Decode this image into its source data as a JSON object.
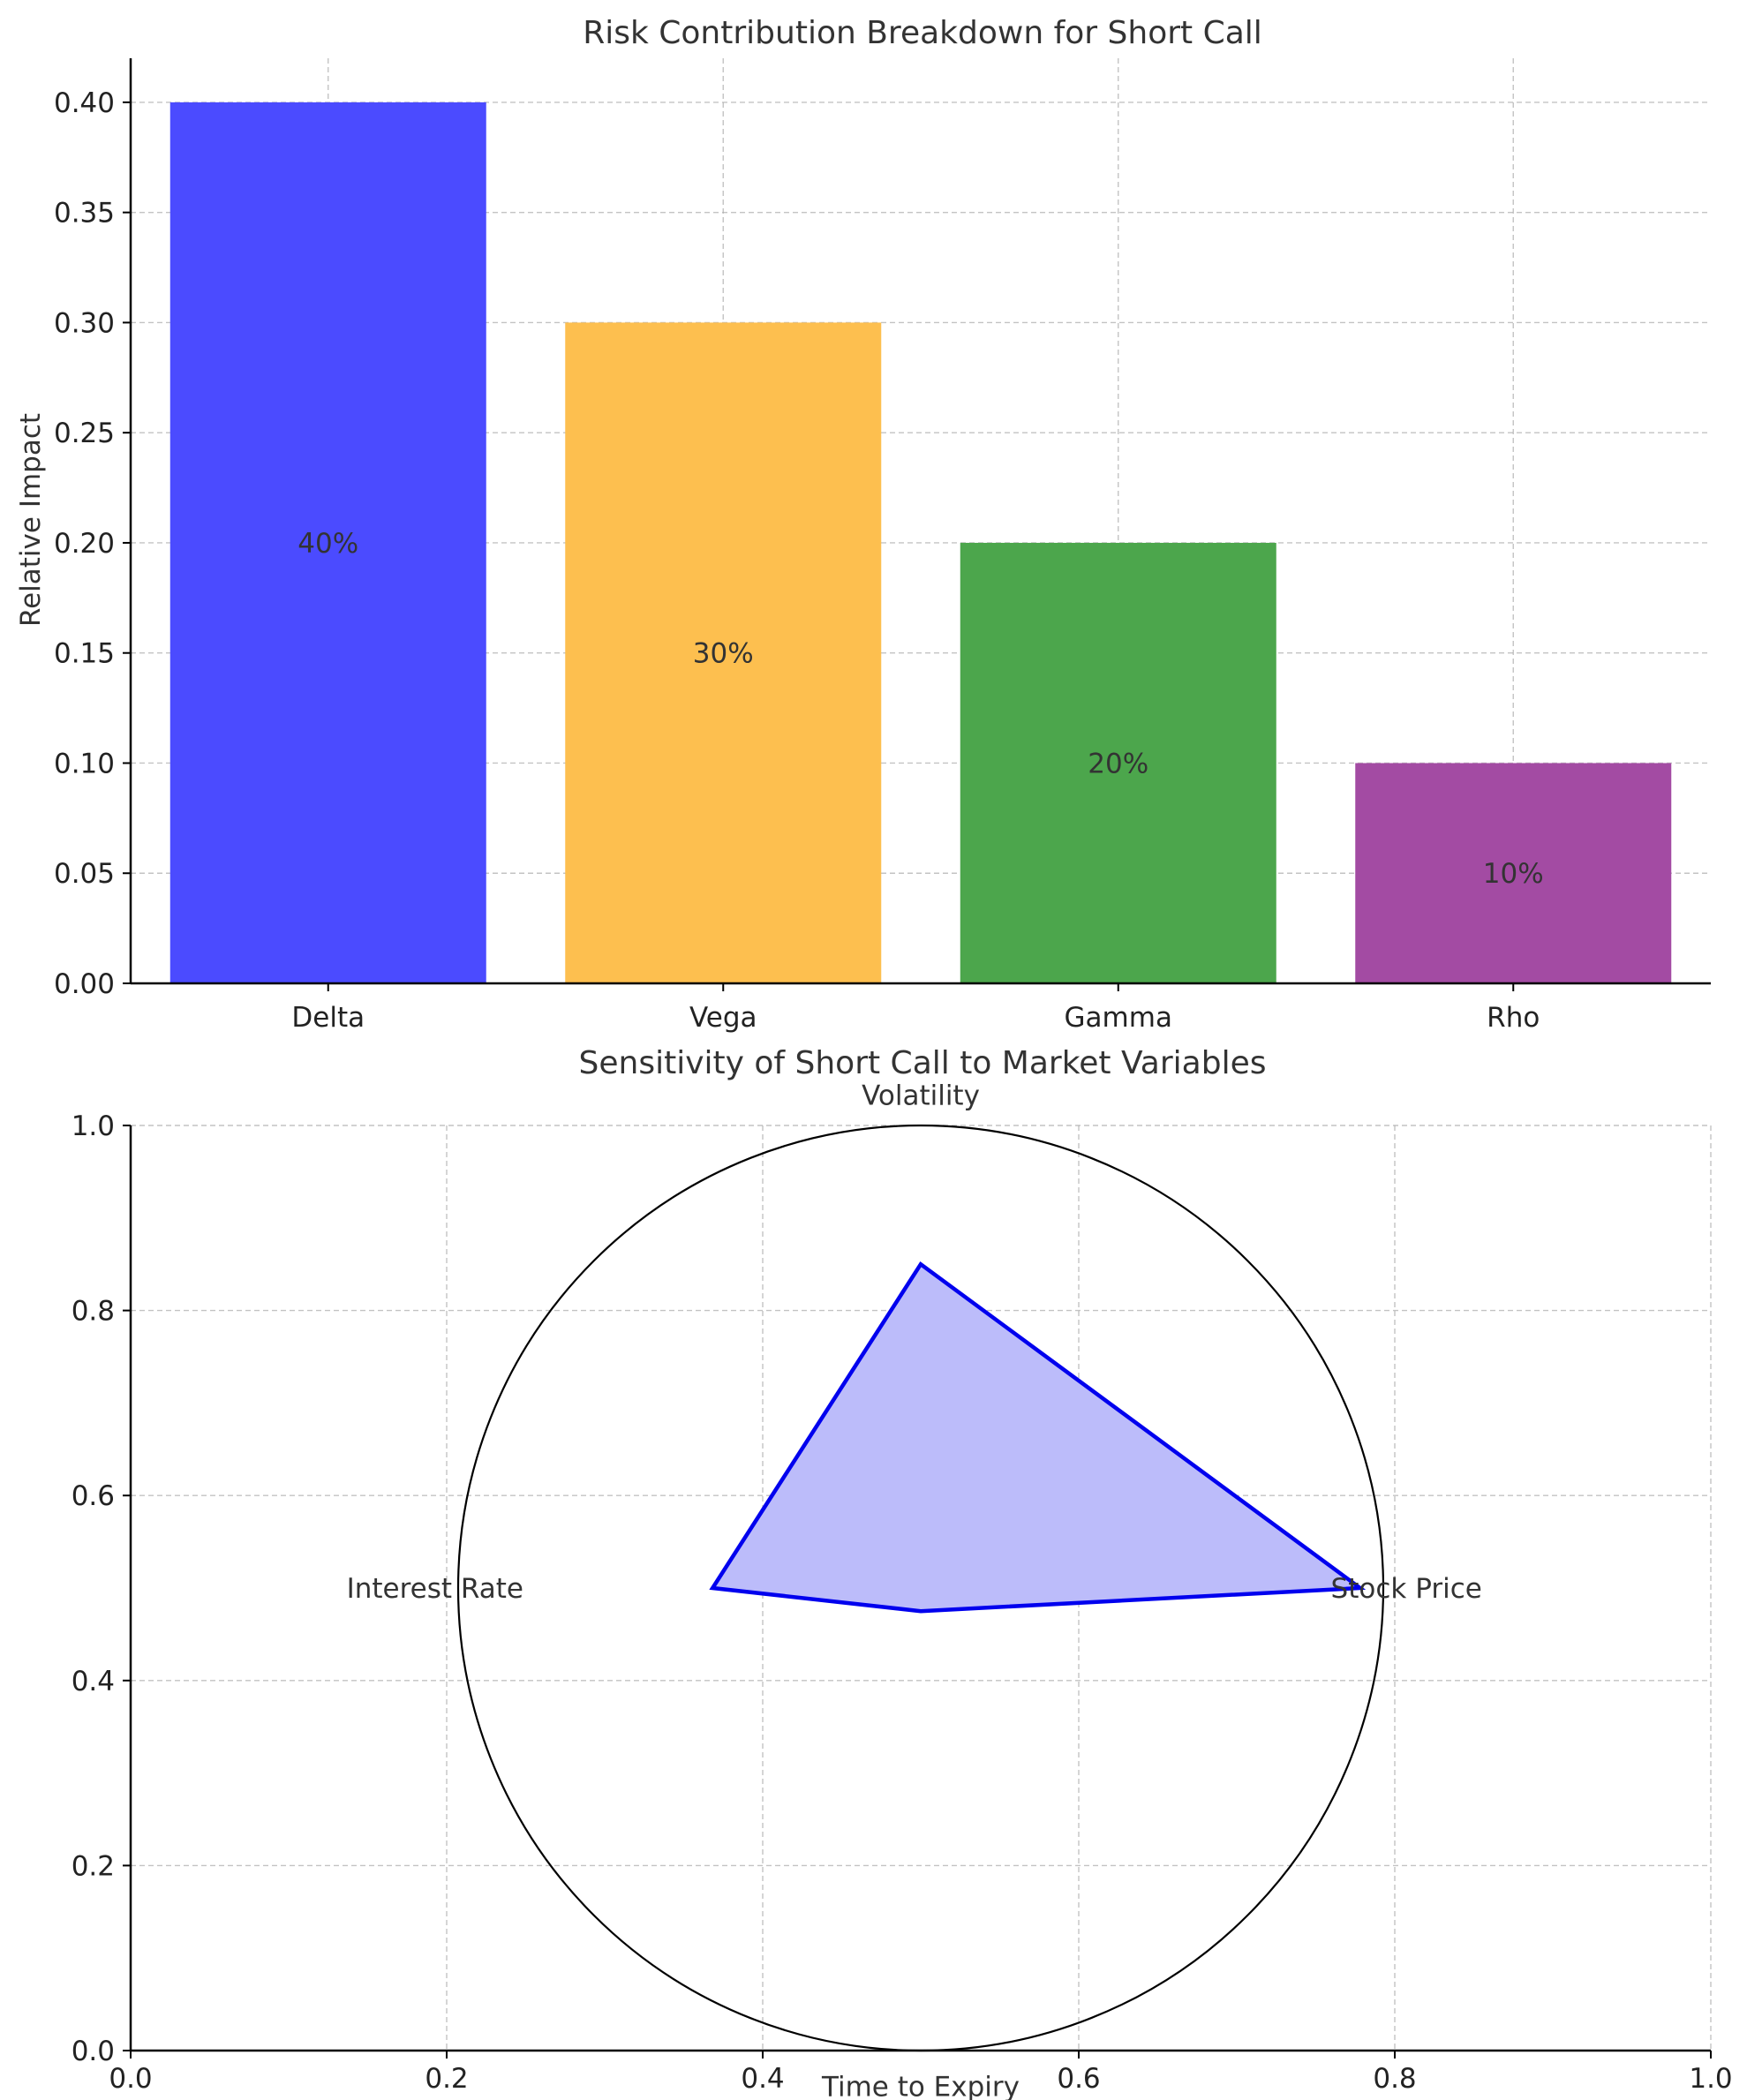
{
  "chart_data": [
    {
      "type": "bar",
      "title": "Risk Contribution Breakdown for Short Call",
      "xlabel": "",
      "ylabel": "Relative Impact",
      "categories": [
        "Delta",
        "Vega",
        "Gamma",
        "Rho"
      ],
      "values": [
        0.4,
        0.3,
        0.2,
        0.1
      ],
      "data_labels": [
        "40%",
        "30%",
        "20%",
        "10%"
      ],
      "colors": [
        "#4b4bff",
        "#fdbf4f",
        "#4ca64c",
        "#a34ba3"
      ],
      "ylim": [
        0,
        0.42
      ],
      "yticks": [
        "0.00",
        "0.05",
        "0.10",
        "0.15",
        "0.20",
        "0.25",
        "0.30",
        "0.35",
        "0.40"
      ],
      "grid": true
    },
    {
      "type": "radar",
      "title": "Sensitivity of Short Call to Market Variables",
      "xlabel": "",
      "ylabel": "",
      "categories": [
        "Stock Price",
        "Volatility",
        "Interest Rate",
        "Time to Expiry"
      ],
      "values": [
        0.95,
        0.7,
        0.45,
        0.05
      ],
      "line_color": "#0000ee",
      "fill_color": "#bcbcfa",
      "xlim": [
        0,
        1
      ],
      "ylim": [
        0,
        1
      ],
      "xticks": [
        "0.0",
        "0.2",
        "0.4",
        "0.6",
        "0.8",
        "1.0"
      ],
      "yticks": [
        "0.0",
        "0.2",
        "0.4",
        "0.6",
        "0.8",
        "1.0"
      ],
      "grid": true
    }
  ]
}
